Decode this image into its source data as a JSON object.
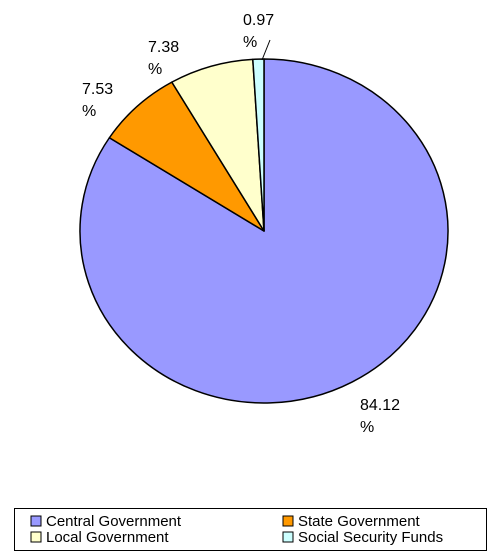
{
  "chart_data": {
    "type": "pie",
    "title": "",
    "slices": [
      {
        "name": "Central Government",
        "value": 84.12,
        "label_value": "84.12",
        "color": "#9999ff"
      },
      {
        "name": "State Government",
        "value": 7.53,
        "label_value": "7.53",
        "color": "#ff9900"
      },
      {
        "name": "Local Government",
        "value": 7.38,
        "label_value": "7.38",
        "color": "#ffffcc"
      },
      {
        "name": "Social Security Funds",
        "value": 0.97,
        "label_value": "0.97",
        "color": "#ccffff"
      }
    ],
    "label_unit": "%",
    "start": "12 o'clock",
    "direction": "clockwise",
    "legend_position": "bottom"
  }
}
